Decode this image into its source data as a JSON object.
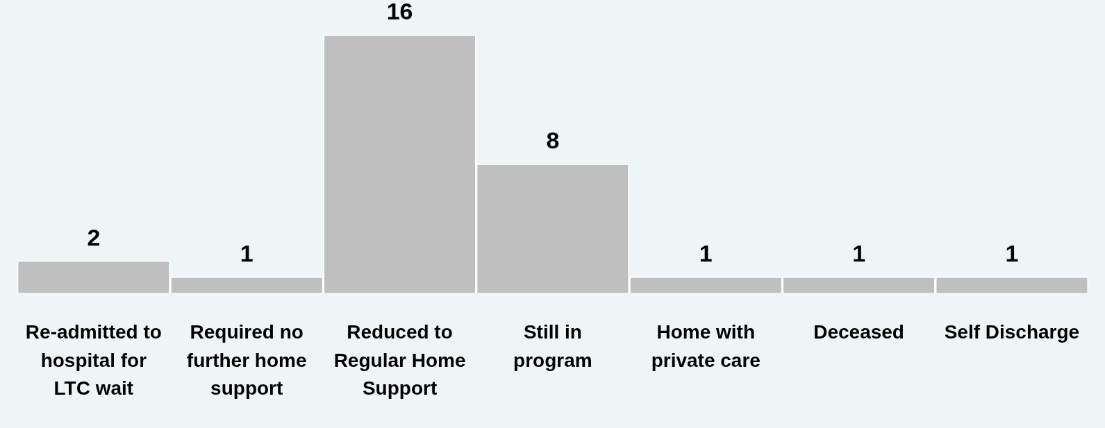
{
  "chart_data": {
    "type": "bar",
    "categories": [
      "Re-admitted to hospital for LTC wait",
      "Required no further home support",
      "Reduced to Regular Home Support",
      "Still in program",
      "Home with private care",
      "Deceased",
      "Self Discharge"
    ],
    "values": [
      2,
      1,
      16,
      8,
      1,
      1,
      1
    ],
    "color": "#bfbfbf",
    "data_labels": true,
    "grid": false,
    "legend": false,
    "tick_labels": "x"
  }
}
